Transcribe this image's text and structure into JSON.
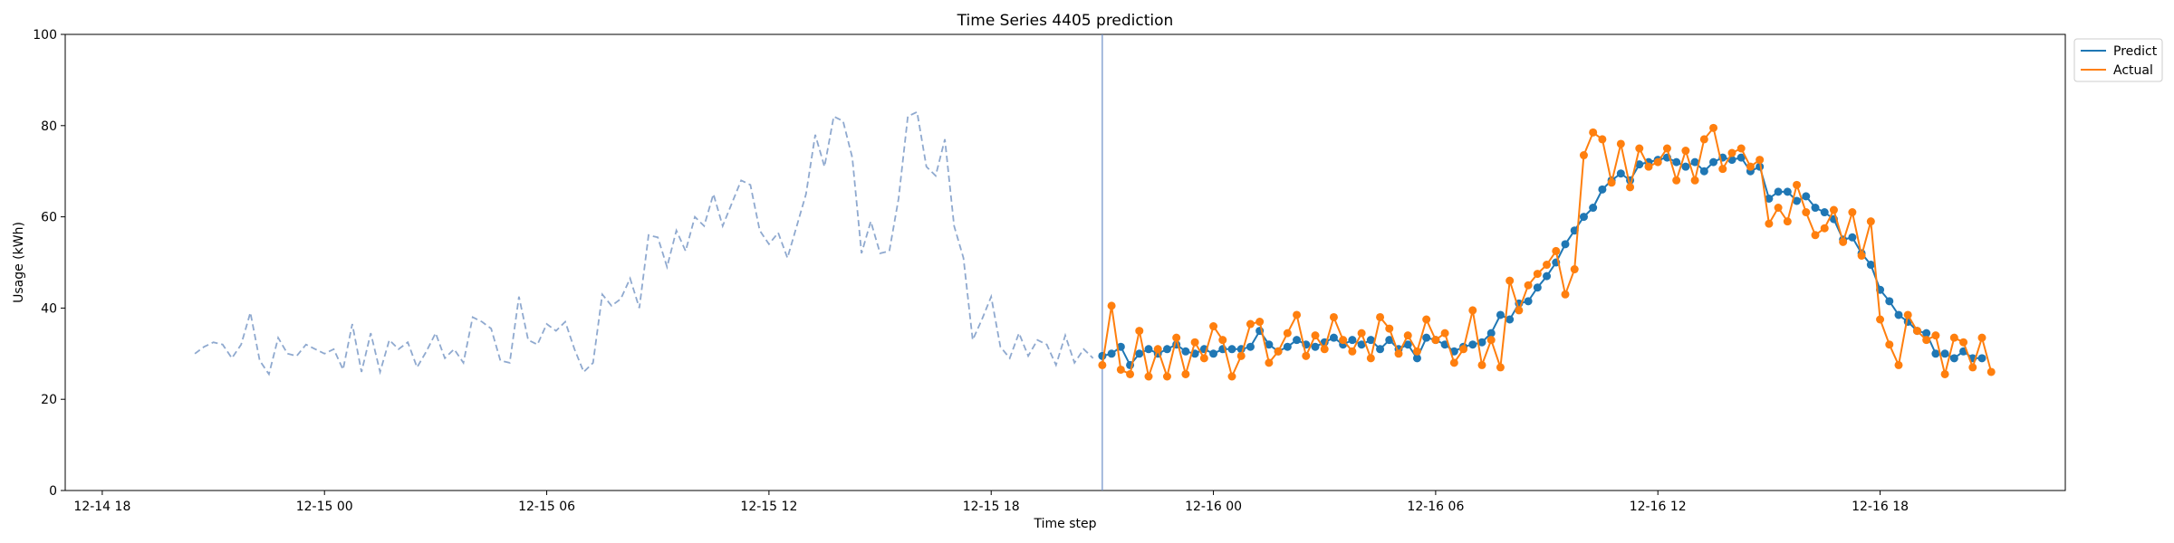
{
  "chart_data": {
    "type": "line",
    "title": "Time Series 4405 prediction",
    "xlabel": "Time step",
    "ylabel": "Usage (kWh)",
    "ylim": [
      0,
      100
    ],
    "yticks": [
      0,
      20,
      40,
      60,
      80,
      100
    ],
    "xlim": [
      "12-14 17:00",
      "12-16 23:00"
    ],
    "xticks": [
      {
        "label": "12-14 18",
        "t": "12-14 18:00"
      },
      {
        "label": "12-15 00",
        "t": "12-15 00:00"
      },
      {
        "label": "12-15 06",
        "t": "12-15 06:00"
      },
      {
        "label": "12-15 12",
        "t": "12-15 12:00"
      },
      {
        "label": "12-15 18",
        "t": "12-15 18:00"
      },
      {
        "label": "12-16 00",
        "t": "12-16 00:00"
      },
      {
        "label": "12-16 06",
        "t": "12-16 06:00"
      },
      {
        "label": "12-16 12",
        "t": "12-16 12:00"
      },
      {
        "label": "12-16 18",
        "t": "12-16 18:00"
      }
    ],
    "forecast_start": "12-15 21:00",
    "legend": {
      "placement": "upper-right-outside",
      "entries": [
        "Predict",
        "Actual"
      ]
    },
    "grid": false,
    "series": [
      {
        "name": "history",
        "style": "dashed",
        "color": "#8fa9cf",
        "start": "12-14 20:30",
        "step_minutes": 15,
        "values": [
          30,
          31.5,
          32.5,
          32,
          29,
          32,
          39,
          28.5,
          25.5,
          33.5,
          30,
          29.5,
          32,
          31,
          30,
          31,
          26.5,
          36.5,
          26,
          34.5,
          26,
          33,
          31,
          32.5,
          27,
          30.5,
          34.5,
          29,
          31,
          28,
          38,
          37,
          35.5,
          28.5,
          28,
          42.5,
          33,
          32,
          36.5,
          35,
          37,
          31,
          26,
          28,
          43,
          40.5,
          42,
          46.5,
          40,
          56,
          55.5,
          49,
          57,
          52.5,
          60,
          58,
          65,
          58,
          63,
          68,
          67,
          57,
          54,
          56.5,
          51,
          58,
          65,
          78,
          71,
          82,
          81,
          73,
          52,
          59,
          52,
          52.5,
          64,
          82,
          83,
          71,
          69,
          77,
          58,
          51,
          33,
          37.5,
          42.5,
          31.5,
          29,
          34.5,
          29.5,
          33,
          32,
          27.5,
          34,
          28,
          31,
          29
        ]
      },
      {
        "name": "Predict",
        "style": "solid-markers",
        "color": "#1f77b4",
        "start": "12-15 21:00",
        "step_minutes": 15,
        "values": [
          29.5,
          30,
          31.5,
          27.5,
          30,
          31,
          30,
          31,
          32,
          30.5,
          30,
          31,
          30,
          31,
          31,
          31,
          31.5,
          35,
          32,
          30.5,
          31.5,
          33,
          32,
          31.5,
          32.5,
          33.5,
          32,
          33,
          32,
          33,
          31,
          33,
          31,
          32,
          29,
          33.5,
          33,
          32,
          30.5,
          31.5,
          32,
          32.5,
          34.5,
          38.5,
          37.5,
          41,
          41.5,
          44.5,
          47,
          50,
          54,
          57,
          60,
          62,
          66,
          68,
          69.5,
          68,
          71.5,
          72,
          72.5,
          73,
          72,
          71,
          72,
          70,
          72,
          73,
          72.5,
          73,
          70,
          71,
          64,
          65.5,
          65.5,
          63.5,
          64.5,
          62,
          61,
          59.5,
          55,
          55.5,
          52,
          49.5,
          44,
          41.5,
          38.5,
          37,
          35,
          34.5,
          30,
          30,
          29,
          30.5,
          29,
          29
        ]
      },
      {
        "name": "Actual",
        "style": "solid-markers",
        "color": "#ff7f0e",
        "start": "12-15 21:00",
        "step_minutes": 15,
        "values": [
          27.5,
          40.5,
          26.5,
          25.5,
          35,
          25,
          31,
          25,
          33.5,
          25.5,
          32.5,
          29,
          36,
          33,
          25,
          29.5,
          36.5,
          37,
          28,
          30.5,
          34.5,
          38.5,
          29.5,
          34,
          31,
          38,
          33,
          30.5,
          34.5,
          29,
          38,
          35.5,
          30,
          34,
          30.5,
          37.5,
          33,
          34.5,
          28,
          31,
          39.5,
          27.5,
          33,
          27,
          46,
          39.5,
          45,
          47.5,
          49.5,
          52.5,
          43,
          48.5,
          73.5,
          78.5,
          77,
          67.5,
          76,
          66.5,
          75,
          71,
          72,
          75,
          68,
          74.5,
          68,
          77,
          79.5,
          70.5,
          74,
          75,
          71,
          72.5,
          58.5,
          62,
          59,
          67,
          61,
          56,
          57.5,
          61.5,
          54.5,
          61,
          51.5,
          59,
          37.5,
          32,
          27.5,
          38.5,
          35,
          33,
          34,
          25.5,
          33.5,
          32.5,
          27,
          33.5,
          26
        ]
      }
    ]
  }
}
